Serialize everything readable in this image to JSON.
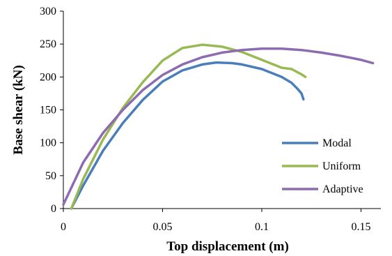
{
  "chart_data": {
    "type": "line",
    "title": "",
    "xlabel": "Top displacement (m)",
    "ylabel": "Base shear (kN)",
    "xlim": [
      0,
      0.16
    ],
    "ylim": [
      0,
      300
    ],
    "x_ticks": [
      0,
      0.05,
      0.1,
      0.15
    ],
    "x_tick_labels": [
      "0",
      "0.05",
      "0.1",
      "0.15"
    ],
    "y_ticks": [
      0,
      50,
      100,
      150,
      200,
      250,
      300
    ],
    "y_tick_labels": [
      "0",
      "50",
      "100",
      "150",
      "200",
      "250",
      "300"
    ],
    "grid": false,
    "legend_position": "bottom-right",
    "series": [
      {
        "name": "Modal",
        "color": "#4a7ebb",
        "points": [
          [
            0.004,
            0
          ],
          [
            0.01,
            35
          ],
          [
            0.02,
            88
          ],
          [
            0.03,
            130
          ],
          [
            0.04,
            165
          ],
          [
            0.05,
            193
          ],
          [
            0.06,
            210
          ],
          [
            0.07,
            219
          ],
          [
            0.077,
            222
          ],
          [
            0.085,
            221
          ],
          [
            0.09,
            219
          ],
          [
            0.1,
            212
          ],
          [
            0.11,
            200
          ],
          [
            0.115,
            191
          ],
          [
            0.118,
            182
          ],
          [
            0.12,
            175
          ],
          [
            0.121,
            166
          ]
        ]
      },
      {
        "name": "Uniform",
        "color": "#98b954",
        "points": [
          [
            0.004,
            0
          ],
          [
            0.01,
            45
          ],
          [
            0.02,
            105
          ],
          [
            0.03,
            153
          ],
          [
            0.04,
            192
          ],
          [
            0.05,
            225
          ],
          [
            0.06,
            244
          ],
          [
            0.07,
            249
          ],
          [
            0.08,
            246
          ],
          [
            0.09,
            238
          ],
          [
            0.1,
            226
          ],
          [
            0.11,
            214
          ],
          [
            0.115,
            212
          ],
          [
            0.12,
            204
          ],
          [
            0.122,
            200
          ]
        ]
      },
      {
        "name": "Adaptive",
        "color": "#8c6bb1",
        "points": [
          [
            0,
            6
          ],
          [
            0.01,
            70
          ],
          [
            0.02,
            115
          ],
          [
            0.03,
            150
          ],
          [
            0.04,
            180
          ],
          [
            0.05,
            203
          ],
          [
            0.06,
            219
          ],
          [
            0.07,
            230
          ],
          [
            0.08,
            237
          ],
          [
            0.09,
            241
          ],
          [
            0.1,
            243
          ],
          [
            0.11,
            243
          ],
          [
            0.12,
            241
          ],
          [
            0.13,
            237
          ],
          [
            0.14,
            232
          ],
          [
            0.15,
            226
          ],
          [
            0.156,
            221
          ]
        ]
      }
    ]
  }
}
